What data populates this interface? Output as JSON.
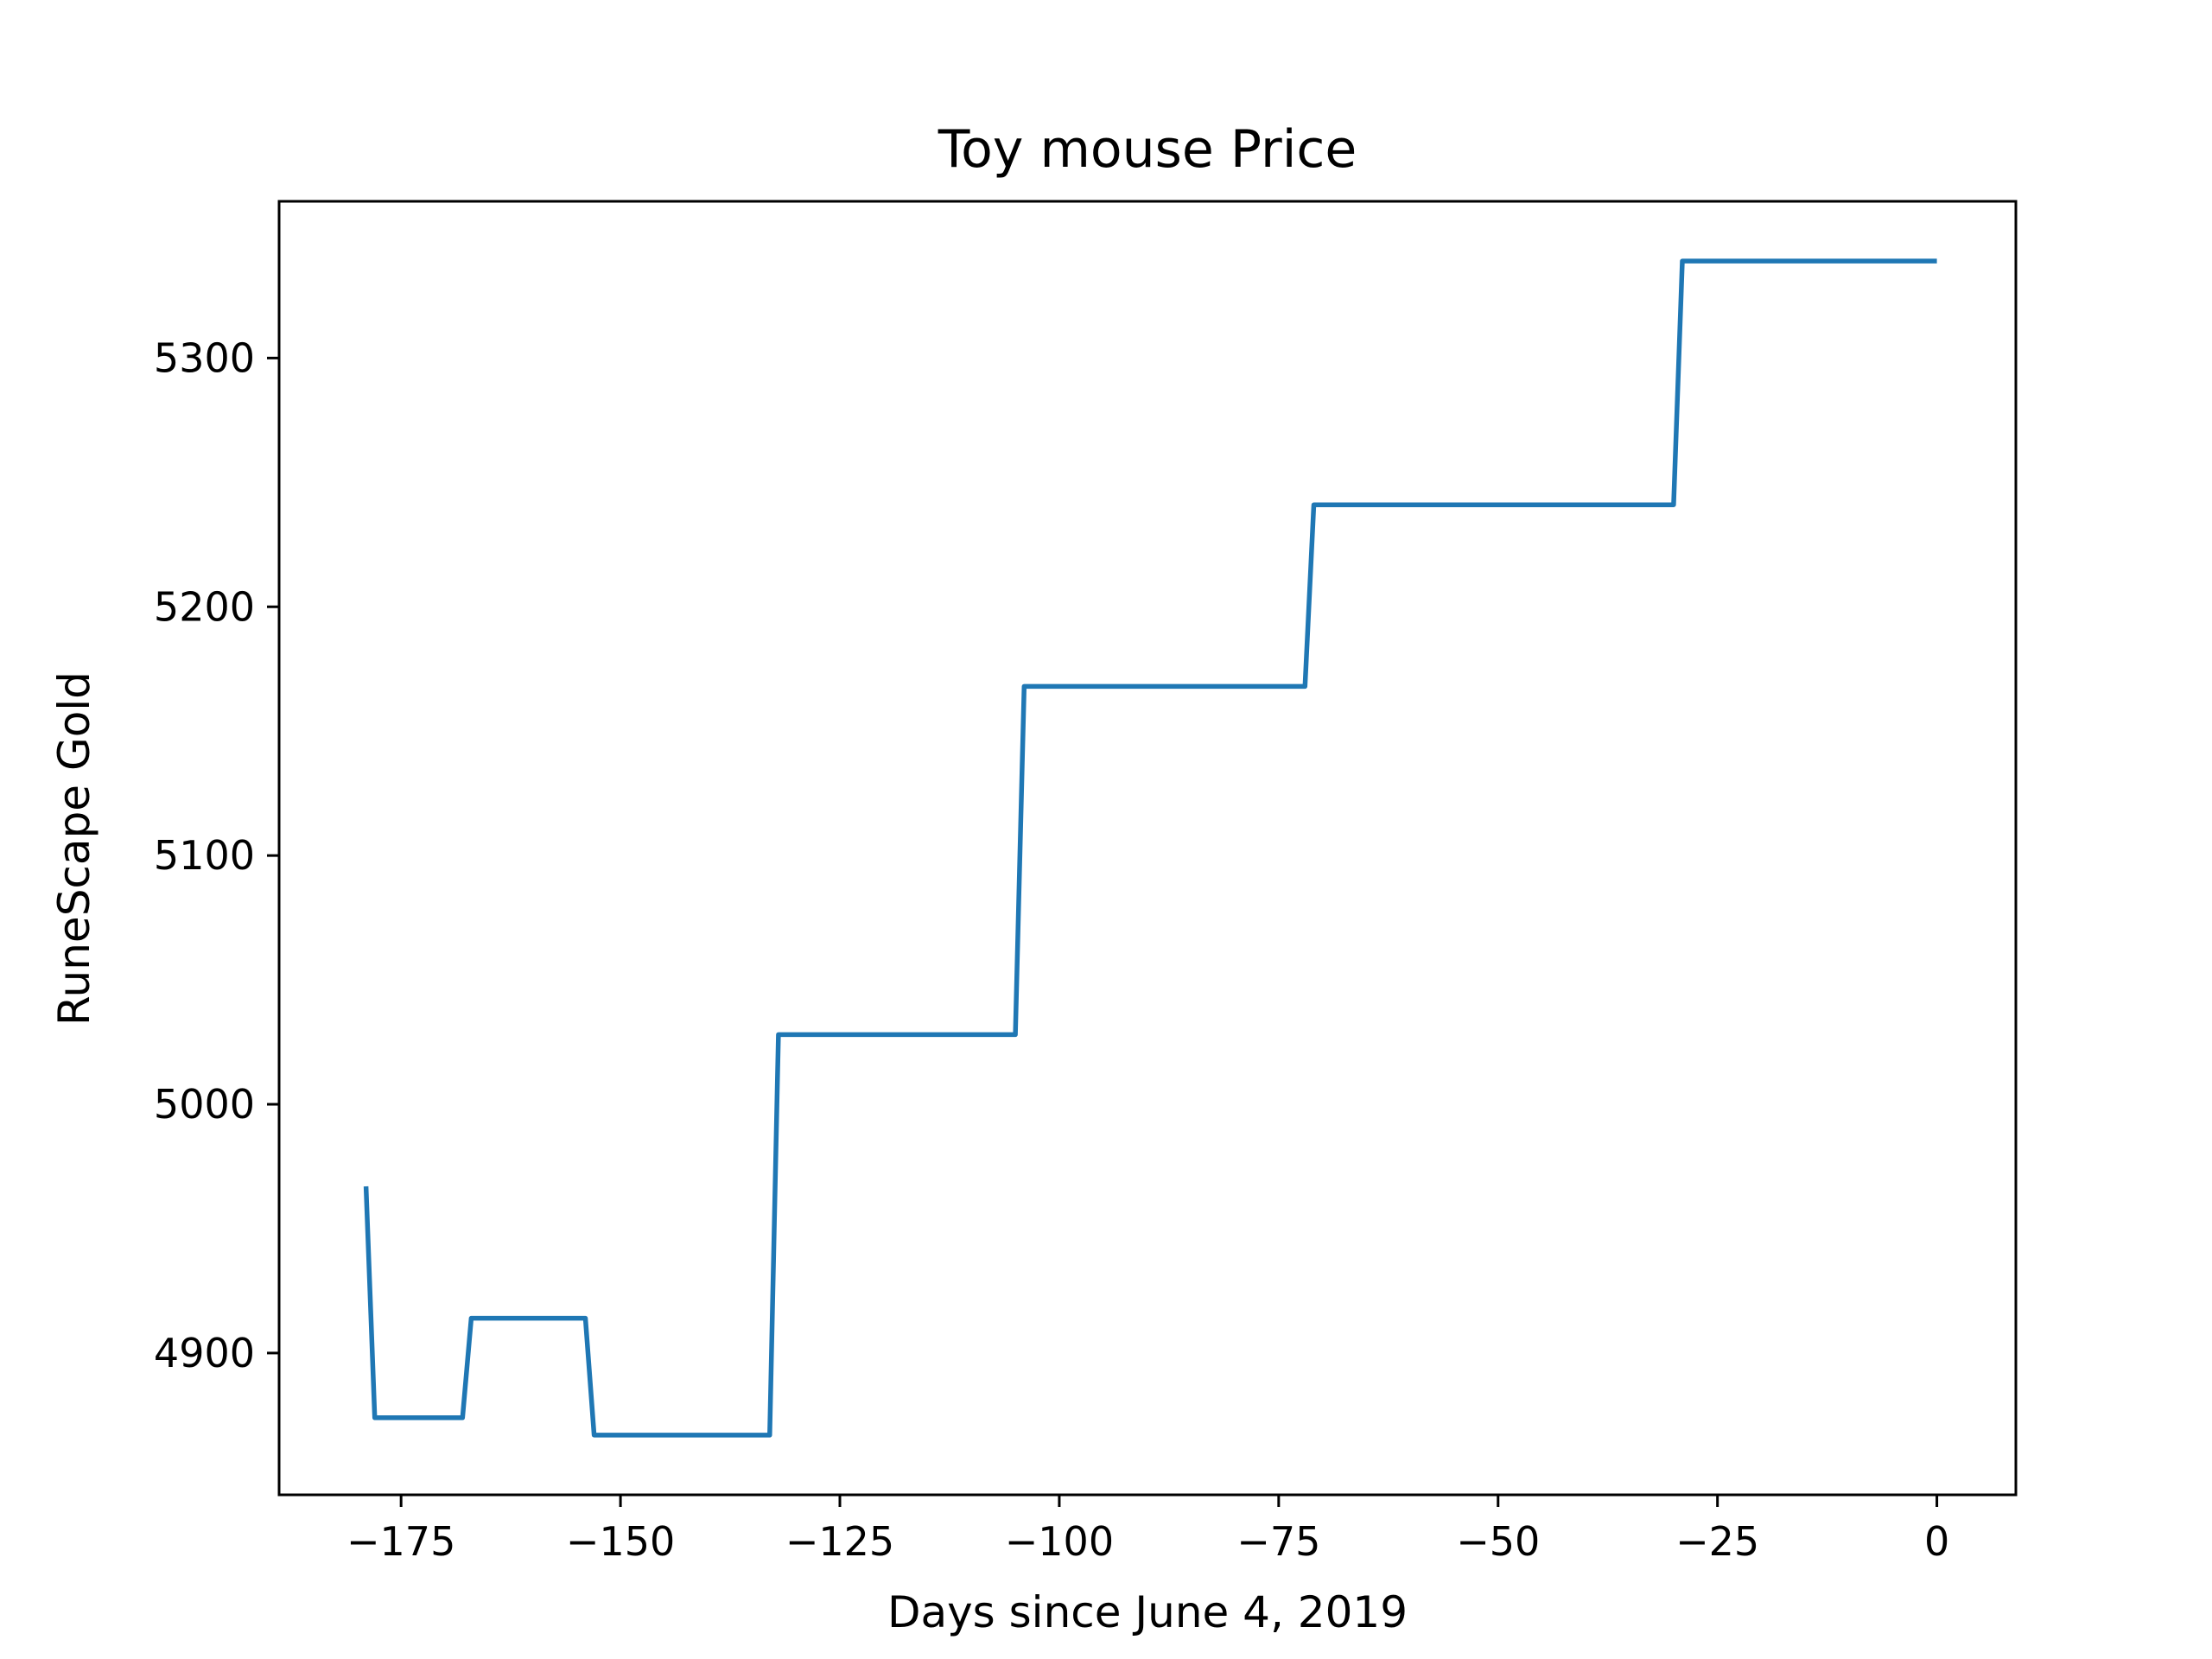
{
  "chart_data": {
    "type": "line",
    "title": "Toy mouse Price",
    "xlabel": "Days since June 4, 2019",
    "ylabel": "RuneScape Gold",
    "xlim": [
      -188.9,
      9.0
    ],
    "ylim": [
      4843,
      5363
    ],
    "xticks": [
      -175,
      -150,
      -125,
      -100,
      -75,
      -50,
      -25,
      0
    ],
    "xtick_labels": [
      "−175",
      "−150",
      "−125",
      "−100",
      "−75",
      "−50",
      "−25",
      "0"
    ],
    "yticks": [
      4900,
      5000,
      5100,
      5200,
      5300
    ],
    "ytick_labels": [
      "4900",
      "5000",
      "5100",
      "5200",
      "5300"
    ],
    "grid": false,
    "line_color": "#1f77b4",
    "series": [
      {
        "x": [
          -179,
          -178,
          -177,
          -176,
          -175,
          -174,
          -173,
          -172,
          -171,
          -170,
          -169,
          -168,
          -167,
          -166,
          -165,
          -164,
          -163,
          -162,
          -161,
          -160,
          -159,
          -158,
          -157,
          -156,
          -155,
          -154,
          -153,
          -152,
          -151,
          -150,
          -149,
          -148,
          -147,
          -146,
          -145,
          -144,
          -143,
          -142,
          -141,
          -140,
          -139,
          -138,
          -137,
          -136,
          -135,
          -134,
          -133,
          -132,
          -131,
          -130,
          -129,
          -128,
          -127,
          -126,
          -125,
          -124,
          -123,
          -122,
          -121,
          -120,
          -119,
          -118,
          -117,
          -116,
          -115,
          -114,
          -113,
          -112,
          -111,
          -110,
          -109,
          -108,
          -107,
          -106,
          -105,
          -104,
          -103,
          -102,
          -101,
          -100,
          -99,
          -98,
          -97,
          -96,
          -95,
          -94,
          -93,
          -92,
          -91,
          -90,
          -89,
          -88,
          -87,
          -86,
          -85,
          -84,
          -83,
          -82,
          -81,
          -80,
          -79,
          -78,
          -77,
          -76,
          -75,
          -74,
          -73,
          -72,
          -71,
          -70,
          -69,
          -68,
          -67,
          -66,
          -65,
          -64,
          -63,
          -62,
          -61,
          -60,
          -59,
          -58,
          -57,
          -56,
          -55,
          -54,
          -53,
          -52,
          -51,
          -50,
          -49,
          -48,
          -47,
          -46,
          -45,
          -44,
          -43,
          -42,
          -41,
          -40,
          -39,
          -38,
          -37,
          -36,
          -35,
          -34,
          -33,
          -32,
          -31,
          -30,
          -29,
          -28,
          -27,
          -26,
          -25,
          -24,
          -23,
          -22,
          -21,
          -20,
          -19,
          -18,
          -17,
          -16,
          -15,
          -14,
          -13,
          -12,
          -11,
          -10,
          -9,
          -8,
          -7,
          -6,
          -5,
          -4,
          -3,
          -2,
          -1,
          0
        ],
        "y": [
          4967,
          4874,
          4874,
          4874,
          4874,
          4874,
          4874,
          4874,
          4874,
          4874,
          4874,
          4874,
          4914,
          4914,
          4914,
          4914,
          4914,
          4914,
          4914,
          4914,
          4914,
          4914,
          4914,
          4914,
          4914,
          4914,
          4867,
          4867,
          4867,
          4867,
          4867,
          4867,
          4867,
          4867,
          4867,
          4867,
          4867,
          4867,
          4867,
          4867,
          4867,
          4867,
          4867,
          4867,
          4867,
          4867,
          4867,
          5028,
          5028,
          5028,
          5028,
          5028,
          5028,
          5028,
          5028,
          5028,
          5028,
          5028,
          5028,
          5028,
          5028,
          5028,
          5028,
          5028,
          5028,
          5028,
          5028,
          5028,
          5028,
          5028,
          5028,
          5028,
          5028,
          5028,
          5028,
          5168,
          5168,
          5168,
          5168,
          5168,
          5168,
          5168,
          5168,
          5168,
          5168,
          5168,
          5168,
          5168,
          5168,
          5168,
          5168,
          5168,
          5168,
          5168,
          5168,
          5168,
          5168,
          5168,
          5168,
          5168,
          5168,
          5168,
          5168,
          5168,
          5168,
          5168,
          5168,
          5168,
          5241,
          5241,
          5241,
          5241,
          5241,
          5241,
          5241,
          5241,
          5241,
          5241,
          5241,
          5241,
          5241,
          5241,
          5241,
          5241,
          5241,
          5241,
          5241,
          5241,
          5241,
          5241,
          5241,
          5241,
          5241,
          5241,
          5241,
          5241,
          5241,
          5241,
          5241,
          5241,
          5241,
          5241,
          5241,
          5241,
          5241,
          5241,
          5241,
          5241,
          5241,
          5241,
          5339,
          5339,
          5339,
          5339,
          5339,
          5339,
          5339,
          5339,
          5339,
          5339,
          5339,
          5339,
          5339,
          5339,
          5339,
          5339,
          5339,
          5339,
          5339,
          5339,
          5339,
          5339,
          5339,
          5339,
          5339,
          5339,
          5339,
          5339,
          5339,
          5339
        ]
      }
    ]
  }
}
